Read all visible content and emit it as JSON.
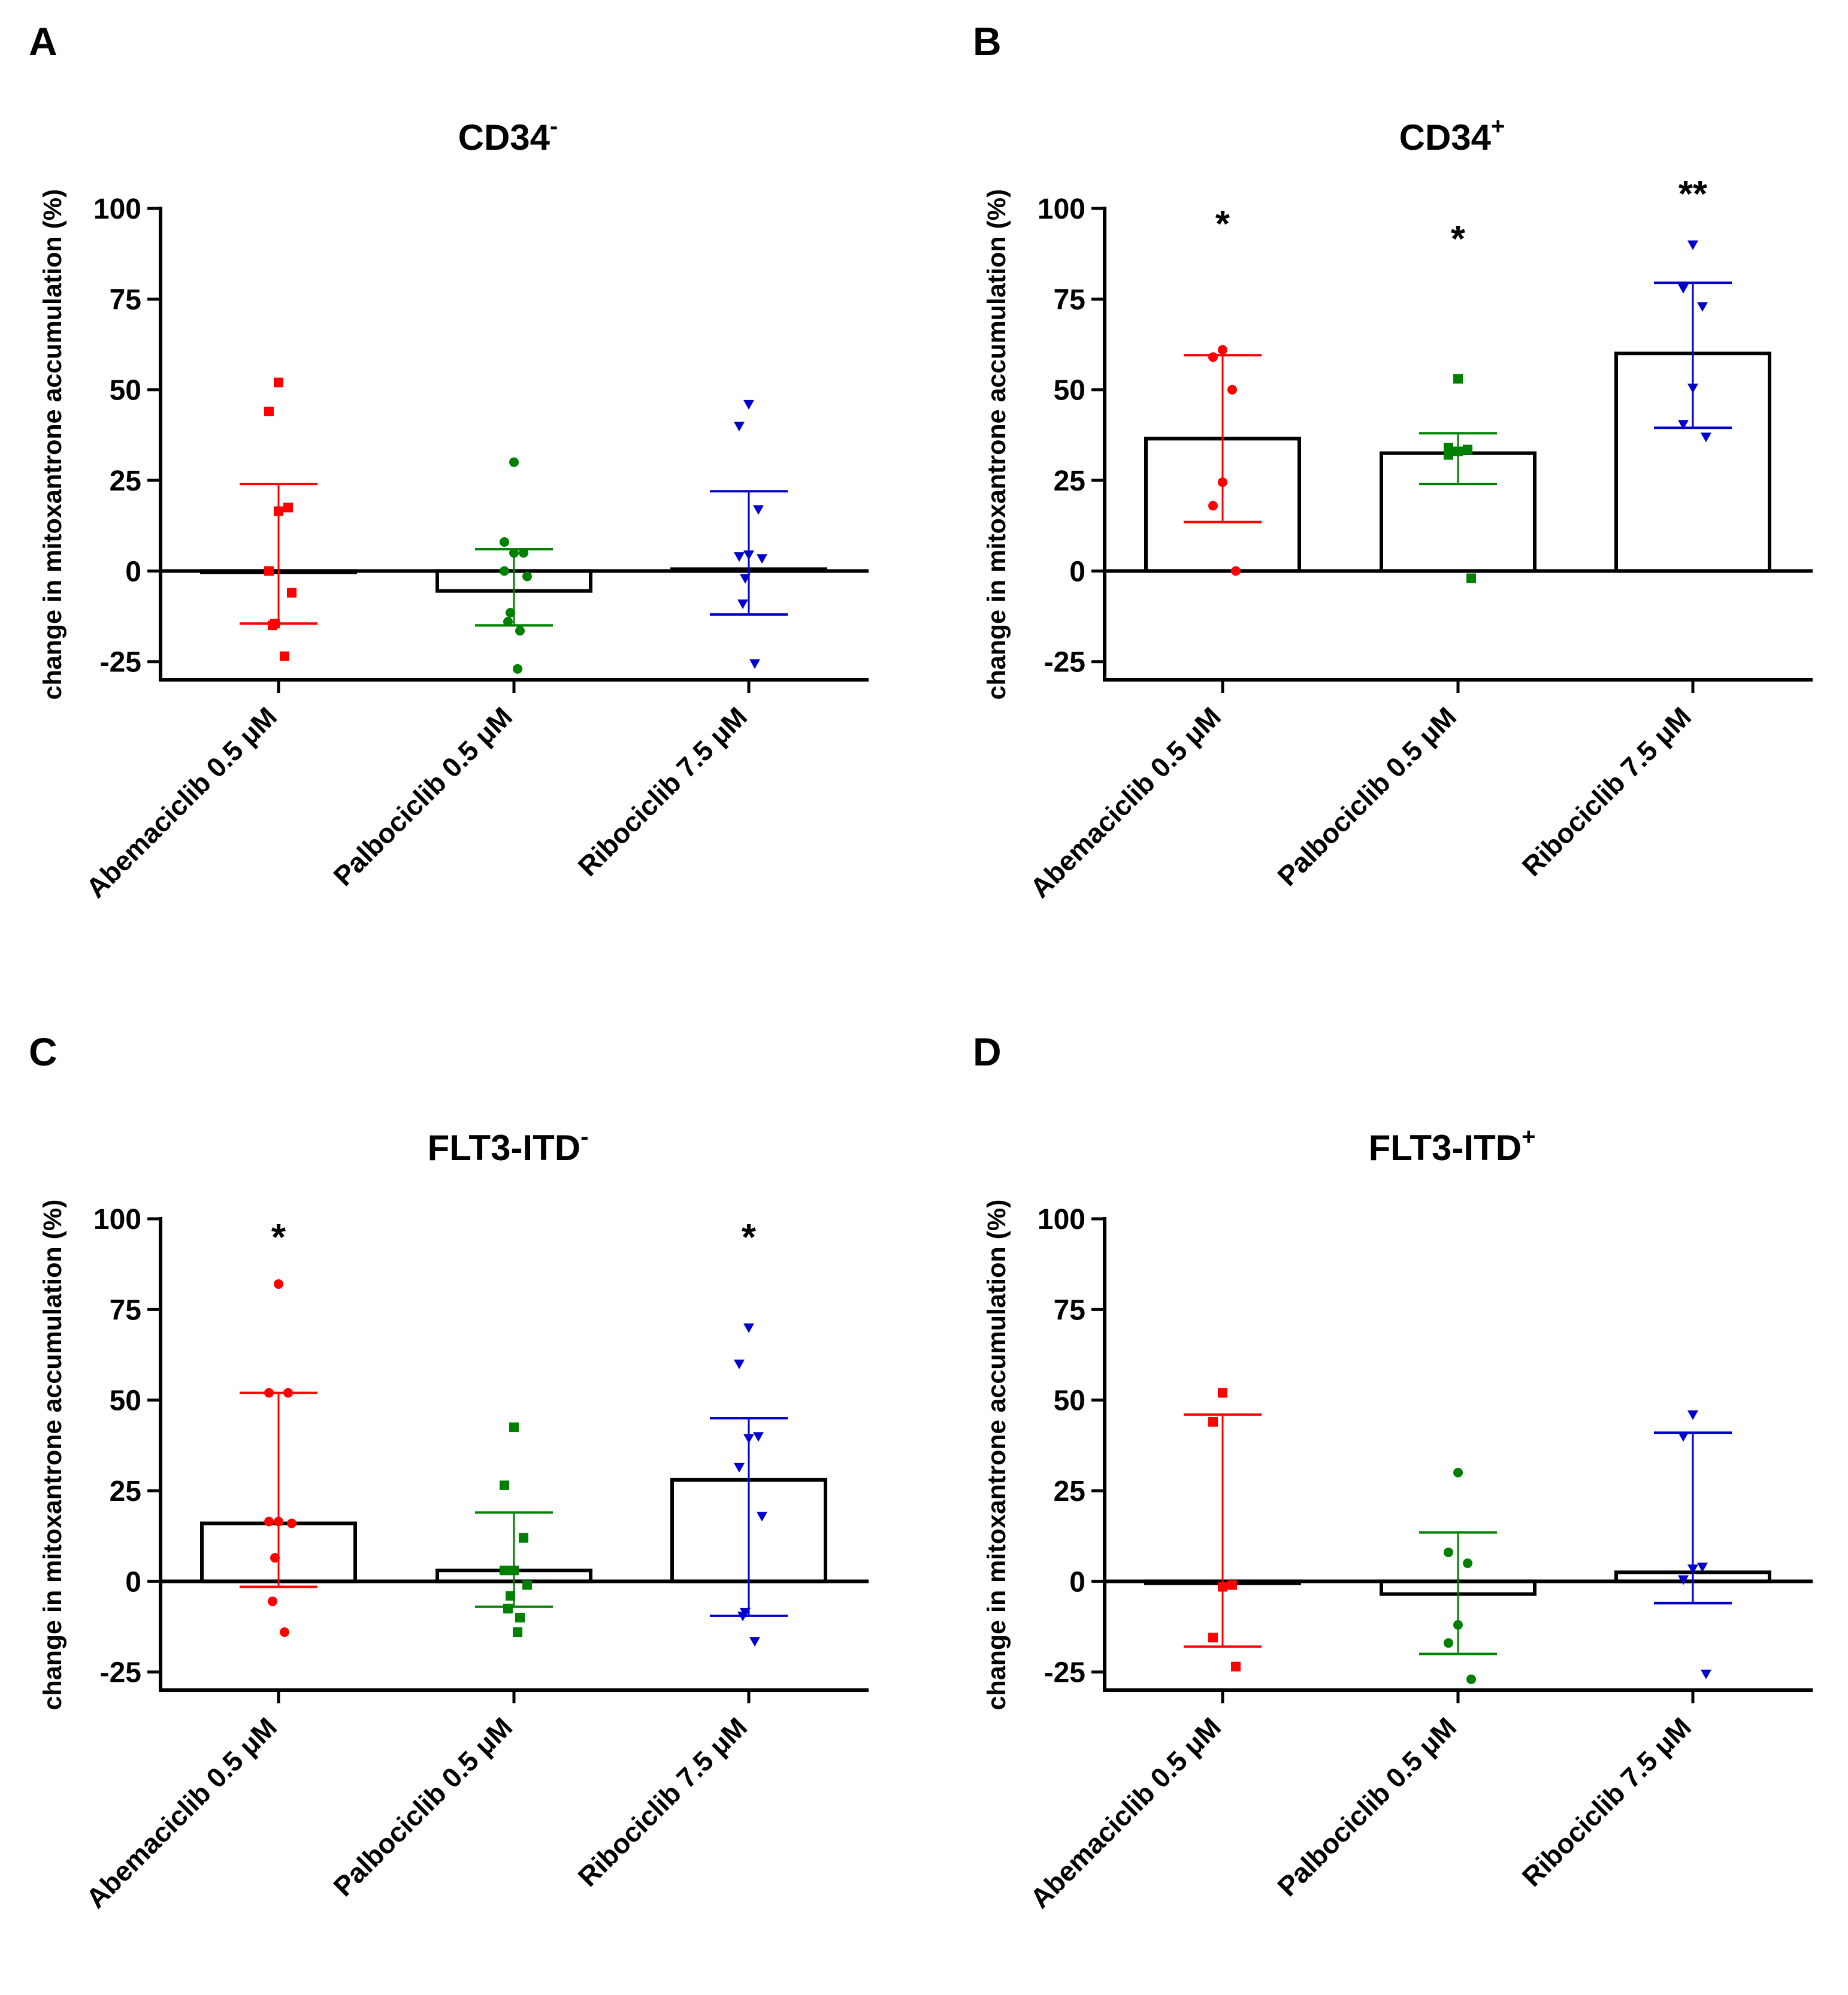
{
  "figure": {
    "panels": [
      "A",
      "B",
      "C",
      "D"
    ]
  },
  "chart_data": [
    {
      "panel": "A",
      "title": "CD34",
      "title_superscript": "-",
      "type": "bar",
      "ylabel": "change in mitoxantrone accumulation (%)",
      "ylim": [
        -30,
        100
      ],
      "yticks": [
        100,
        75,
        50,
        25,
        0,
        -25
      ],
      "categories": [
        "Abemaciclib 0.5 μM",
        "Palbociclib 0.5 μM",
        "Ribociclib 7.5 μM"
      ],
      "colors": [
        "#ff0000",
        "#008000",
        "#0000cc"
      ],
      "markers": [
        "square",
        "circle",
        "triangle-down"
      ],
      "series": [
        {
          "name": "Abemaciclib 0.5 μM",
          "mean": 0,
          "sd_upper": 24,
          "sd_lower": -14.5,
          "points": [
            52,
            44,
            17.5,
            16.5,
            0,
            -6,
            -14.5,
            -15,
            -23.5
          ],
          "significance": ""
        },
        {
          "name": "Palbociclib 0.5 μM",
          "mean": -5.5,
          "sd_upper": 6,
          "sd_lower": -15,
          "points": [
            30,
            8,
            5,
            5,
            0,
            -1.5,
            -11.5,
            -14,
            -16.5,
            -27
          ],
          "significance": ""
        },
        {
          "name": "Ribociclib 7.5 μM",
          "mean": 0.5,
          "sd_upper": 22,
          "sd_lower": -12,
          "points": [
            46,
            40,
            17,
            4.5,
            4,
            3.5,
            -2,
            -9,
            -25.5
          ],
          "significance": ""
        }
      ]
    },
    {
      "panel": "B",
      "title": "CD34",
      "title_superscript": "+",
      "type": "bar",
      "ylabel": "change in mitoxantrone accumulation (%)",
      "ylim": [
        -30,
        100
      ],
      "yticks": [
        100,
        75,
        50,
        25,
        0,
        -25
      ],
      "categories": [
        "Abemaciclib 0.5 μM",
        "Palbociclib 0.5 μM",
        "Ribociclib 7.5 μM"
      ],
      "colors": [
        "#ff0000",
        "#008000",
        "#0000cc"
      ],
      "markers": [
        "circle",
        "square",
        "triangle-down"
      ],
      "series": [
        {
          "name": "Abemaciclib 0.5 μM",
          "mean": 36.5,
          "sd_upper": 59.5,
          "sd_lower": 13.5,
          "points": [
            61,
            59,
            50,
            24.5,
            18,
            0
          ],
          "significance": "*"
        },
        {
          "name": "Palbociclib 0.5 μM",
          "mean": 32.5,
          "sd_upper": 38,
          "sd_lower": 24,
          "points": [
            53,
            34,
            33.5,
            33,
            32,
            -2
          ],
          "significance": "*"
        },
        {
          "name": "Ribociclib 7.5 μM",
          "mean": 60,
          "sd_upper": 79.5,
          "sd_lower": 39.5,
          "points": [
            90,
            78,
            73,
            50.5,
            40.5,
            37
          ],
          "significance": "**"
        }
      ]
    },
    {
      "panel": "C",
      "title": "FLT3-ITD",
      "title_superscript": "-",
      "type": "bar",
      "ylabel": "change in mitoxantrone accumulation (%)",
      "ylim": [
        -30,
        100
      ],
      "yticks": [
        100,
        75,
        50,
        25,
        0,
        -25
      ],
      "categories": [
        "Abemaciclib 0.5 μM",
        "Palbociclib 0.5 μM",
        "Ribociclib 7.5 μM"
      ],
      "colors": [
        "#ff0000",
        "#008000",
        "#0000cc"
      ],
      "markers": [
        "circle",
        "square",
        "triangle-down"
      ],
      "series": [
        {
          "name": "Abemaciclib 0.5 μM",
          "mean": 16,
          "sd_upper": 52,
          "sd_lower": -1.5,
          "points": [
            82,
            52,
            52,
            16.5,
            16.5,
            16,
            6.5,
            -5.5,
            -14
          ],
          "significance": "*"
        },
        {
          "name": "Palbociclib 0.5 μM",
          "mean": 3,
          "sd_upper": 19,
          "sd_lower": -7,
          "points": [
            42.5,
            26.5,
            12,
            3,
            3,
            -1,
            -4,
            -7.5,
            -10,
            -14
          ],
          "significance": ""
        },
        {
          "name": "Ribociclib 7.5 μM",
          "mean": 28,
          "sd_upper": 45,
          "sd_lower": -9.5,
          "points": [
            70,
            60,
            40,
            39.5,
            31.5,
            18,
            -8.5,
            -9.5,
            -16.5
          ],
          "significance": "*"
        }
      ]
    },
    {
      "panel": "D",
      "title": "FLT3-ITD",
      "title_superscript": "+",
      "type": "bar",
      "ylabel": "change in mitoxantrone accumulation (%)",
      "ylim": [
        -30,
        100
      ],
      "yticks": [
        100,
        75,
        50,
        25,
        0,
        -25
      ],
      "categories": [
        "Abemaciclib 0.5 μM",
        "Palbociclib 0.5 μM",
        "Ribociclib 7.5 μM"
      ],
      "colors": [
        "#ff0000",
        "#008000",
        "#0000cc"
      ],
      "markers": [
        "square",
        "circle",
        "triangle-down"
      ],
      "series": [
        {
          "name": "Abemaciclib 0.5 μM",
          "mean": -0.5,
          "sd_upper": 46,
          "sd_lower": -18,
          "points": [
            52,
            44,
            -1,
            -1.5,
            -15.5,
            -23.5
          ],
          "significance": ""
        },
        {
          "name": "Palbociclib 0.5 μM",
          "mean": -3.5,
          "sd_upper": 13.5,
          "sd_lower": -20,
          "points": [
            30,
            8,
            5,
            -12,
            -17,
            -27
          ],
          "significance": ""
        },
        {
          "name": "Ribociclib 7.5 μM",
          "mean": 2.5,
          "sd_upper": 41,
          "sd_lower": -6,
          "points": [
            46,
            40,
            4,
            3.5,
            0.5,
            -25.5
          ],
          "significance": ""
        }
      ]
    }
  ]
}
